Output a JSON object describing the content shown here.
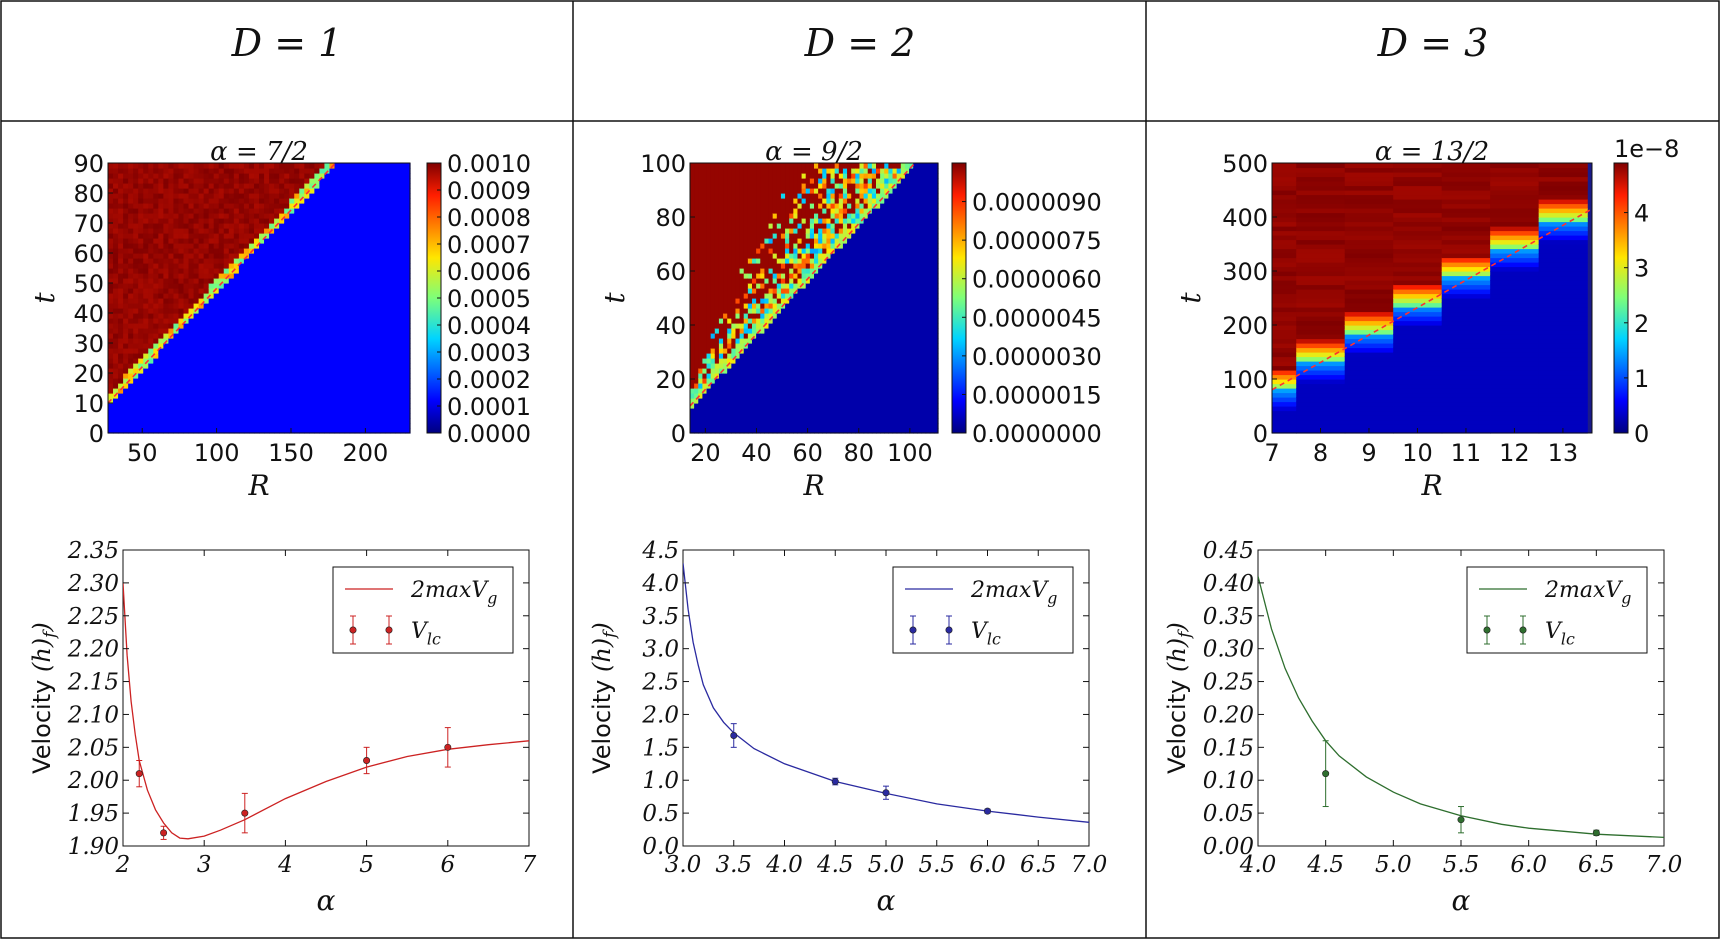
{
  "header_titles": [
    "D = 1",
    "D = 2",
    "D = 3"
  ],
  "chart_data": [
    {
      "type": "heatmap",
      "panel": "D = 1",
      "title": "α = 7/2",
      "xlabel": "R",
      "ylabel": "t",
      "xlim": [
        27,
        230
      ],
      "ylim": [
        0,
        90
      ],
      "xticks": [
        "50",
        "100",
        "150",
        "200"
      ],
      "xtick_values": [
        50,
        100,
        150,
        200
      ],
      "yticks": [
        "0",
        "10",
        "20",
        "30",
        "40",
        "50",
        "60",
        "70",
        "80",
        "90"
      ],
      "ytick_values": [
        0,
        10,
        20,
        30,
        40,
        50,
        60,
        70,
        80,
        90
      ],
      "front_line": {
        "x": [
          27,
          180
        ],
        "y": [
          10,
          90
        ],
        "style": "dashed red"
      },
      "colorbar": {
        "min": 0,
        "max": 0.001,
        "scale_label": "",
        "ticks": [
          "0.0000",
          "0.0001",
          "0.0002",
          "0.0003",
          "0.0004",
          "0.0005",
          "0.0006",
          "0.0007",
          "0.0008",
          "0.0009",
          "0.0010"
        ],
        "tick_values": [
          0,
          0.0001,
          0.0002,
          0.0003,
          0.0004,
          0.0005,
          0.0006,
          0.0007,
          0.0008,
          0.0009,
          0.001
        ]
      }
    },
    {
      "type": "heatmap",
      "panel": "D = 2",
      "title": "α = 9/2",
      "xlabel": "R",
      "ylabel": "t",
      "xlim": [
        14,
        111
      ],
      "ylim": [
        0,
        100
      ],
      "xticks": [
        "20",
        "40",
        "60",
        "80",
        "100"
      ],
      "xtick_values": [
        20,
        40,
        60,
        80,
        100
      ],
      "yticks": [
        "0",
        "20",
        "40",
        "60",
        "80",
        "100"
      ],
      "ytick_values": [
        0,
        20,
        40,
        60,
        80,
        100
      ],
      "front_line": {
        "x": [
          14,
          102
        ],
        "y": [
          10,
          100
        ],
        "style": "dashed red"
      },
      "colorbar": {
        "min": 0,
        "max": 1.05e-05,
        "scale_label": "",
        "ticks": [
          "0.0000000",
          "0.0000015",
          "0.0000030",
          "0.0000045",
          "0.0000060",
          "0.0000075",
          "0.0000090"
        ],
        "tick_values": [
          0,
          1.5e-06,
          3e-06,
          4.5e-06,
          6e-06,
          7.5e-06,
          9e-06
        ]
      }
    },
    {
      "type": "heatmap",
      "panel": "D = 3",
      "title": "α = 13/2",
      "xlabel": "R",
      "ylabel": "t",
      "xlim": [
        7,
        13.6
      ],
      "ylim": [
        0,
        500
      ],
      "xticks": [
        "7",
        "8",
        "9",
        "10",
        "11",
        "12",
        "13"
      ],
      "xtick_values": [
        7,
        8,
        9,
        10,
        11,
        12,
        13
      ],
      "yticks": [
        "0",
        "100",
        "200",
        "300",
        "400",
        "500"
      ],
      "ytick_values": [
        0,
        100,
        200,
        300,
        400,
        500
      ],
      "front_line": {
        "x": [
          7,
          13.6
        ],
        "y": [
          80,
          415
        ],
        "style": "dashed red"
      },
      "colorbar": {
        "min": 0,
        "max": 4.9,
        "scale_label": "1e−8",
        "ticks": [
          "0",
          "1",
          "2",
          "3",
          "4"
        ],
        "tick_values": [
          0,
          1,
          2,
          3,
          4
        ]
      }
    },
    {
      "type": "line",
      "panel": "D = 1",
      "xlabel": "α",
      "ylabel": "Velocity (h_f)",
      "xlim": [
        2,
        7
      ],
      "ylim": [
        1.9,
        2.35
      ],
      "xticks": [
        "2",
        "3",
        "4",
        "5",
        "6",
        "7"
      ],
      "xtick_values": [
        2,
        3,
        4,
        5,
        6,
        7
      ],
      "yticks": [
        "1.90",
        "1.95",
        "2.00",
        "2.05",
        "2.10",
        "2.15",
        "2.20",
        "2.25",
        "2.30",
        "2.35"
      ],
      "ytick_values": [
        1.9,
        1.95,
        2.0,
        2.05,
        2.1,
        2.15,
        2.2,
        2.25,
        2.3,
        2.35
      ],
      "color": "#cc2222",
      "legend": [
        "2maxV_g",
        "V_lc"
      ],
      "legend_position": "top-right",
      "curve": {
        "name": "2maxV_g",
        "x": [
          2.0,
          2.05,
          2.1,
          2.15,
          2.2,
          2.3,
          2.4,
          2.5,
          2.6,
          2.7,
          2.8,
          3.0,
          3.2,
          3.5,
          4.0,
          4.5,
          5.0,
          5.5,
          6.0,
          6.5,
          7.0
        ],
        "y": [
          2.3,
          2.19,
          2.12,
          2.07,
          2.03,
          1.985,
          1.955,
          1.935,
          1.92,
          1.912,
          1.911,
          1.915,
          1.924,
          1.94,
          1.972,
          1.998,
          2.02,
          2.036,
          2.047,
          2.054,
          2.06
        ]
      },
      "points": {
        "name": "V_lc",
        "x": [
          2.2,
          2.5,
          3.5,
          5.0,
          6.0
        ],
        "y": [
          2.01,
          1.92,
          1.95,
          2.03,
          2.05
        ],
        "err": [
          0.02,
          0.01,
          0.03,
          0.02,
          0.03
        ]
      }
    },
    {
      "type": "line",
      "panel": "D = 2",
      "xlabel": "α",
      "ylabel": "Velocity (h_f)",
      "xlim": [
        3,
        7
      ],
      "ylim": [
        0,
        4.5
      ],
      "xticks": [
        "3.0",
        "3.5",
        "4.0",
        "4.5",
        "5.0",
        "5.5",
        "6.0",
        "6.5",
        "7.0"
      ],
      "xtick_values": [
        3.0,
        3.5,
        4.0,
        4.5,
        5.0,
        5.5,
        6.0,
        6.5,
        7.0
      ],
      "yticks": [
        "0.0",
        "0.5",
        "1.0",
        "1.5",
        "2.0",
        "2.5",
        "3.0",
        "3.5",
        "4.0",
        "4.5"
      ],
      "ytick_values": [
        0,
        0.5,
        1.0,
        1.5,
        2.0,
        2.5,
        3.0,
        3.5,
        4.0,
        4.5
      ],
      "color": "#2a2aa0",
      "legend": [
        "2maxV_g",
        "V_lc"
      ],
      "legend_position": "top-right",
      "curve": {
        "name": "2maxV_g",
        "x": [
          3.0,
          3.05,
          3.1,
          3.15,
          3.2,
          3.3,
          3.4,
          3.5,
          3.7,
          4.0,
          4.5,
          5.0,
          5.5,
          6.0,
          6.5,
          7.0
        ],
        "y": [
          4.3,
          3.6,
          3.1,
          2.75,
          2.45,
          2.1,
          1.88,
          1.72,
          1.48,
          1.25,
          0.98,
          0.8,
          0.64,
          0.53,
          0.44,
          0.36
        ]
      },
      "points": {
        "name": "V_lc",
        "x": [
          3.5,
          4.5,
          5.0,
          6.0
        ],
        "y": [
          1.68,
          0.98,
          0.81,
          0.53
        ],
        "err": [
          0.18,
          0.05,
          0.1,
          0.03
        ]
      }
    },
    {
      "type": "line",
      "panel": "D = 3",
      "xlabel": "α",
      "ylabel": "Velocity (h_f)",
      "xlim": [
        4,
        7
      ],
      "ylim": [
        0,
        0.45
      ],
      "xticks": [
        "4.0",
        "4.5",
        "5.0",
        "5.5",
        "6.0",
        "6.5",
        "7.0"
      ],
      "xtick_values": [
        4.0,
        4.5,
        5.0,
        5.5,
        6.0,
        6.5,
        7.0
      ],
      "yticks": [
        "0.00",
        "0.05",
        "0.10",
        "0.15",
        "0.20",
        "0.25",
        "0.30",
        "0.35",
        "0.40",
        "0.45"
      ],
      "ytick_values": [
        0,
        0.05,
        0.1,
        0.15,
        0.2,
        0.25,
        0.3,
        0.35,
        0.4,
        0.45
      ],
      "color": "#2e6e2e",
      "legend": [
        "2maxV_g",
        "V_lc"
      ],
      "legend_position": "top-right",
      "curve": {
        "name": "2maxV_g",
        "x": [
          4.0,
          4.1,
          4.2,
          4.3,
          4.4,
          4.5,
          4.6,
          4.8,
          5.0,
          5.2,
          5.5,
          5.8,
          6.0,
          6.5,
          7.0
        ],
        "y": [
          0.41,
          0.33,
          0.27,
          0.225,
          0.19,
          0.16,
          0.137,
          0.105,
          0.082,
          0.064,
          0.046,
          0.033,
          0.027,
          0.018,
          0.013
        ]
      },
      "points": {
        "name": "V_lc",
        "x": [
          4.5,
          5.5,
          6.5
        ],
        "y": [
          0.11,
          0.04,
          0.02
        ],
        "err": [
          0.05,
          0.02,
          0.004
        ]
      }
    }
  ]
}
